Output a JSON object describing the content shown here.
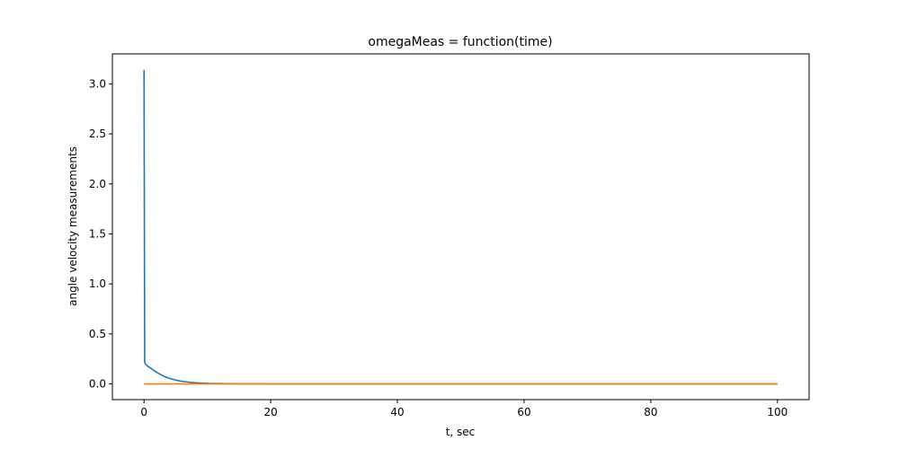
{
  "chart_data": {
    "type": "line",
    "title": "omegaMeas = function(time)",
    "xlabel": "t, sec",
    "ylabel": "angle velocity measurements",
    "xlim": [
      -5,
      105
    ],
    "ylim": [
      -0.157,
      3.3
    ],
    "xticks": [
      0,
      20,
      40,
      60,
      80,
      100
    ],
    "yticks": [
      0.0,
      0.5,
      1.0,
      1.5,
      2.0,
      2.5,
      3.0
    ],
    "grid": false,
    "legend": "none",
    "series": [
      {
        "color": "#1f77b4",
        "x": [
          0,
          0.1,
          0.2,
          0.5,
          1,
          2,
          3,
          4,
          5,
          6,
          7,
          8,
          9,
          10,
          12,
          15,
          20,
          30,
          40,
          50,
          60,
          70,
          80,
          90,
          100
        ],
        "y": [
          3.14,
          0.22,
          0.2,
          0.18,
          0.16,
          0.115,
          0.08,
          0.055,
          0.038,
          0.026,
          0.018,
          0.012,
          0.008,
          0.005,
          0.003,
          0.001,
          0.0,
          0.0,
          0.0,
          0.0,
          0.0,
          0.0,
          0.0,
          0.0,
          0.0
        ]
      },
      {
        "color": "#ff7f0e",
        "x": [
          0,
          100
        ],
        "y": [
          0.0,
          0.0
        ]
      }
    ]
  }
}
